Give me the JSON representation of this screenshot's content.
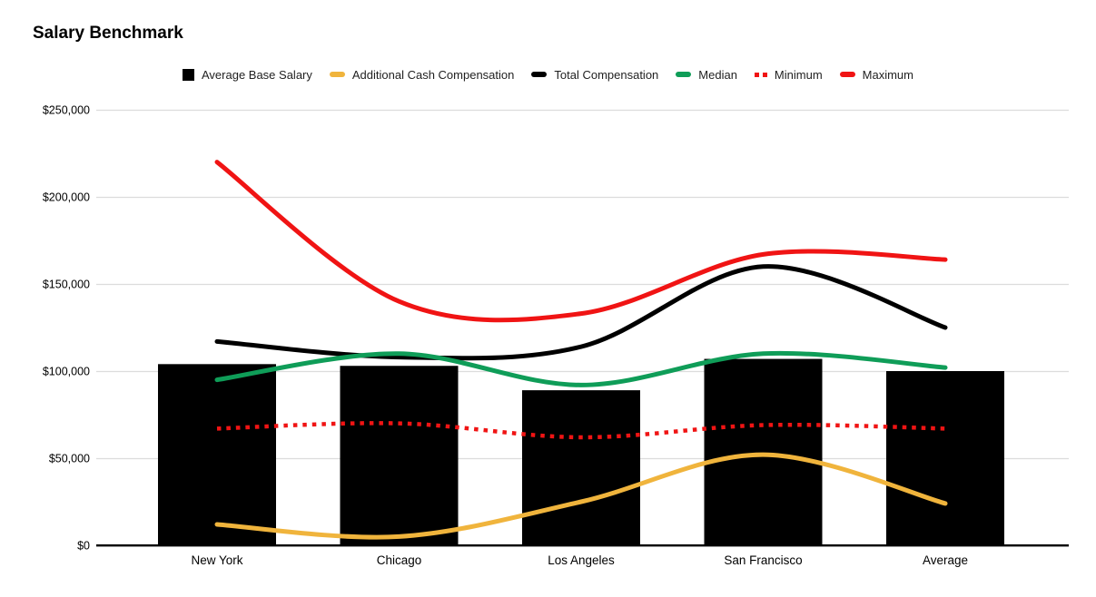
{
  "title": "Salary Benchmark",
  "legend": {
    "items": [
      {
        "label": "Average Base Salary",
        "swatch": "square",
        "color": "#000000"
      },
      {
        "label": "Additional Cash Compensation",
        "swatch": "dash",
        "color": "#f0b43c"
      },
      {
        "label": "Total Compensation",
        "swatch": "dash",
        "color": "#000000"
      },
      {
        "label": "Median",
        "swatch": "dash",
        "color": "#0f9d58"
      },
      {
        "label": "Minimum",
        "swatch": "dots",
        "color": "#f01414"
      },
      {
        "label": "Maximum",
        "swatch": "dash",
        "color": "#f01414"
      }
    ]
  },
  "chart_data": {
    "type": "combo",
    "title": "Salary Benchmark",
    "categories": [
      "New York",
      "Chicago",
      "Los Angeles",
      "San Francisco",
      "Average"
    ],
    "series": [
      {
        "name": "Average Base Salary",
        "type": "bar",
        "style": "solid",
        "color": "#000000",
        "values": [
          104000,
          103000,
          89000,
          107000,
          100000
        ]
      },
      {
        "name": "Additional Cash Compensation",
        "type": "line",
        "style": "solid",
        "color": "#f0b43c",
        "values": [
          12000,
          5000,
          25000,
          52000,
          24000
        ]
      },
      {
        "name": "Total Compensation",
        "type": "line",
        "style": "solid",
        "color": "#000000",
        "values": [
          117000,
          108000,
          114000,
          160000,
          125000
        ]
      },
      {
        "name": "Median",
        "type": "line",
        "style": "solid",
        "color": "#0f9d58",
        "values": [
          95000,
          110000,
          92000,
          110000,
          102000
        ]
      },
      {
        "name": "Minimum",
        "type": "line",
        "style": "dotted",
        "color": "#f01414",
        "values": [
          67000,
          70000,
          62000,
          69000,
          67000
        ]
      },
      {
        "name": "Maximum",
        "type": "line",
        "style": "solid",
        "color": "#f01414",
        "values": [
          220000,
          140000,
          133000,
          167000,
          164000
        ]
      }
    ],
    "ylabel": "",
    "xlabel": "",
    "ylim": [
      0,
      250000
    ],
    "ytick_step": 50000,
    "ytick_labels": [
      "$0",
      "$50,000",
      "$100,000",
      "$150,000",
      "$200,000",
      "$250,000"
    ],
    "grid": true,
    "grid_color": "#dcdcdc",
    "axis_color": "#000000",
    "legend_position": "top",
    "line_smoothing": true
  }
}
